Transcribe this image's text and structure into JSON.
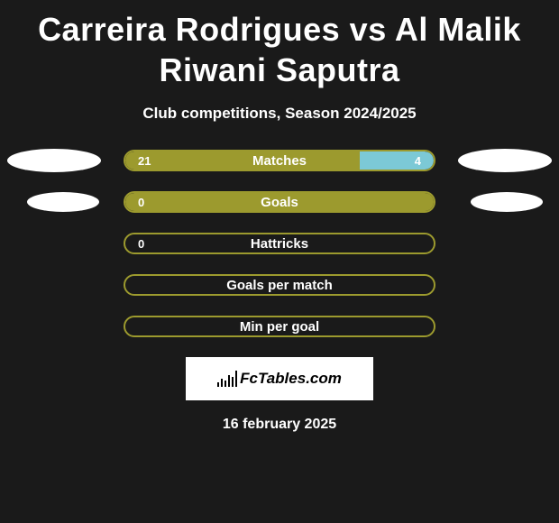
{
  "title": "Carreira Rodrigues vs Al Malik Riwani Saputra",
  "subtitle": "Club competitions, Season 2024/2025",
  "colors": {
    "bar_border": "#9c9a2e",
    "bar_fill_left": "#9c9a2e",
    "bar_fill_right": "#7cc9d6",
    "ellipse": "#ffffff",
    "background": "#1a1a1a"
  },
  "stats": [
    {
      "label": "Matches",
      "left_value": "21",
      "right_value": "4",
      "left_pct": 76,
      "right_pct": 24,
      "show_left_ellipse": true,
      "show_right_ellipse": true,
      "ellipse_class": ""
    },
    {
      "label": "Goals",
      "left_value": "0",
      "right_value": "",
      "left_pct": 100,
      "right_pct": 0,
      "show_left_ellipse": true,
      "show_right_ellipse": true,
      "ellipse_class": "row2"
    },
    {
      "label": "Hattricks",
      "left_value": "0",
      "right_value": "",
      "left_pct": 0,
      "right_pct": 0,
      "show_left_ellipse": false,
      "show_right_ellipse": false,
      "ellipse_class": ""
    },
    {
      "label": "Goals per match",
      "left_value": "",
      "right_value": "",
      "left_pct": 0,
      "right_pct": 0,
      "show_left_ellipse": false,
      "show_right_ellipse": false,
      "ellipse_class": ""
    },
    {
      "label": "Min per goal",
      "left_value": "",
      "right_value": "",
      "left_pct": 0,
      "right_pct": 0,
      "show_left_ellipse": false,
      "show_right_ellipse": false,
      "ellipse_class": ""
    }
  ],
  "logo_text": "FcTables.com",
  "date": "16 february 2025"
}
